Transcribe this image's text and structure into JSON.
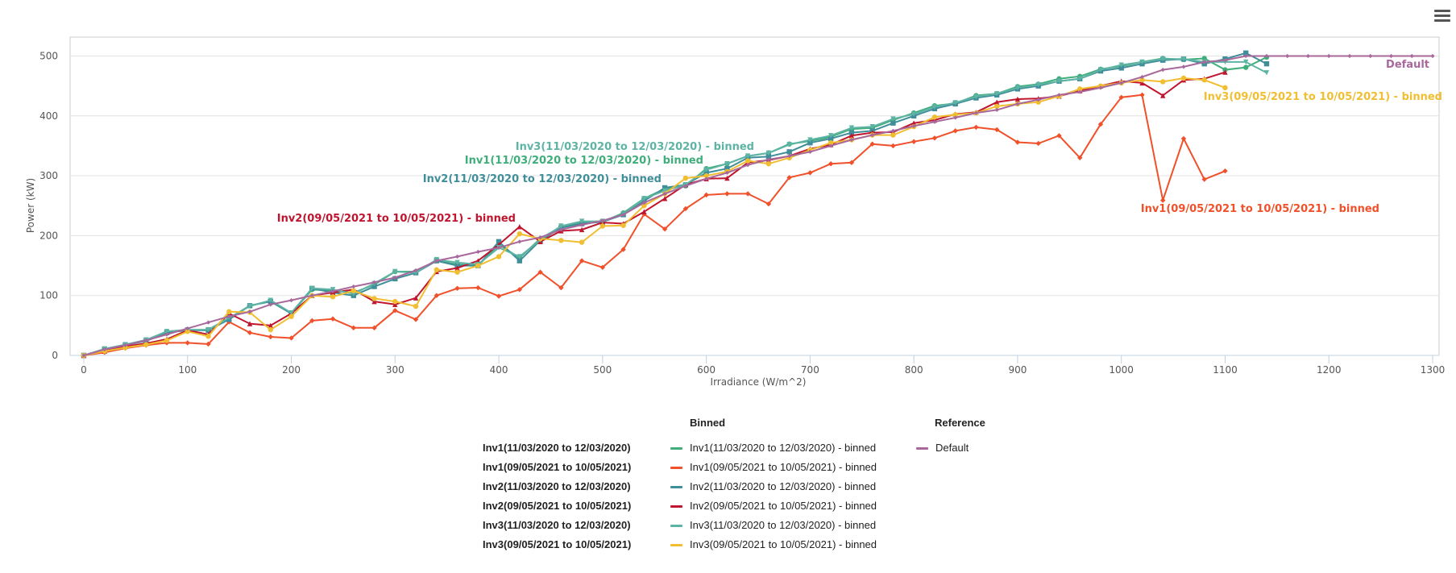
{
  "menu": {
    "icon": "hamburger-menu-icon"
  },
  "chart_data": {
    "type": "line",
    "title": "",
    "xlabel": "Irradiance (W/m^2)",
    "ylabel": "Power (kW)",
    "xlim": [
      0,
      1300
    ],
    "ylim": [
      0,
      520
    ],
    "xticks": [
      "0",
      "100",
      "200",
      "300",
      "400",
      "500",
      "600",
      "700",
      "800",
      "900",
      "1000",
      "1100",
      "1200",
      "1300"
    ],
    "yticks": [
      "0",
      "100",
      "200",
      "300",
      "400",
      "500"
    ],
    "grid": true,
    "x_start": 0,
    "x_step": 20,
    "series": [
      {
        "name": "Inv1(11/03/2020 to 12/03/2020) - binned",
        "group": "Binned",
        "color": "#3fae7a",
        "marker": "circle",
        "values": [
          0,
          10,
          17,
          25,
          40,
          42,
          42,
          62,
          83,
          91,
          70,
          110,
          108,
          105,
          118,
          140,
          140,
          158,
          152,
          150,
          185,
          163,
          195,
          215,
          222,
          223,
          238,
          262,
          278,
          283,
          312,
          320,
          333,
          338,
          353,
          358,
          365,
          378,
          380,
          393,
          405,
          417,
          421,
          434,
          437,
          449,
          453,
          462,
          466,
          478,
          483,
          490,
          496,
          494,
          496,
          477,
          481,
          498
        ]
      },
      {
        "name": "Inv1(09/05/2021 to 10/05/2021) - binned",
        "group": "Binned",
        "color": "#f0502a",
        "marker": "diamond",
        "values": [
          0,
          5,
          12,
          17,
          21,
          21,
          19,
          56,
          38,
          31,
          29,
          58,
          61,
          46,
          46,
          75,
          60,
          100,
          112,
          113,
          99,
          110,
          139,
          113,
          158,
          147,
          177,
          236,
          211,
          245,
          268,
          270,
          270,
          253,
          297,
          305,
          320,
          322,
          353,
          350,
          357,
          363,
          375,
          381,
          377,
          356,
          354,
          367,
          330,
          386,
          431,
          435,
          259,
          362,
          294,
          308
        ]
      },
      {
        "name": "Inv2(11/03/2020 to 12/03/2020) - binned",
        "group": "Binned",
        "color": "#3f8e9a",
        "marker": "square",
        "values": [
          0,
          10,
          17,
          24,
          38,
          42,
          42,
          60,
          83,
          90,
          70,
          112,
          105,
          100,
          115,
          128,
          138,
          158,
          150,
          150,
          190,
          158,
          192,
          213,
          220,
          223,
          235,
          258,
          280,
          285,
          305,
          312,
          330,
          332,
          340,
          355,
          362,
          372,
          375,
          388,
          400,
          412,
          420,
          430,
          435,
          445,
          450,
          458,
          462,
          475,
          480,
          487,
          493,
          495,
          487,
          495,
          505,
          487
        ]
      },
      {
        "name": "Inv2(09/05/2021 to 10/05/2021) - binned",
        "group": "Binned",
        "color": "#c0152f",
        "marker": "triangle",
        "values": [
          0,
          7,
          15,
          20,
          27,
          42,
          35,
          70,
          53,
          50,
          70,
          100,
          105,
          110,
          90,
          85,
          96,
          140,
          146,
          158,
          185,
          215,
          190,
          208,
          210,
          222,
          220,
          240,
          262,
          285,
          295,
          296,
          322,
          326,
          333,
          345,
          352,
          367,
          372,
          373,
          388,
          393,
          403,
          406,
          423,
          428,
          429,
          433,
          442,
          450,
          458,
          455,
          434,
          460,
          462,
          473
        ]
      },
      {
        "name": "Inv3(11/03/2020 to 12/03/2020) - binned",
        "group": "Binned",
        "color": "#5eb4a4",
        "marker": "triangle-down",
        "values": [
          0,
          11,
          18,
          26,
          40,
          43,
          43,
          63,
          82,
          92,
          71,
          112,
          110,
          103,
          120,
          140,
          138,
          160,
          155,
          152,
          180,
          165,
          193,
          216,
          224,
          224,
          236,
          262,
          275,
          285,
          310,
          320,
          333,
          338,
          352,
          360,
          367,
          380,
          382,
          395,
          403,
          415,
          422,
          432,
          437,
          447,
          452,
          458,
          462,
          477,
          485,
          490,
          495,
          495,
          490,
          490,
          490,
          472
        ]
      },
      {
        "name": "Inv3(09/05/2021 to 10/05/2021) - binned",
        "group": "Binned",
        "color": "#f0be30",
        "marker": "circle",
        "values": [
          0,
          7,
          13,
          18,
          25,
          40,
          32,
          73,
          72,
          43,
          65,
          100,
          98,
          108,
          95,
          90,
          82,
          143,
          139,
          150,
          165,
          203,
          195,
          192,
          189,
          216,
          217,
          250,
          270,
          296,
          300,
          307,
          325,
          320,
          330,
          343,
          355,
          360,
          368,
          368,
          382,
          398,
          402,
          405,
          416,
          420,
          423,
          433,
          445,
          450,
          455,
          460,
          457,
          463,
          460,
          447
        ]
      },
      {
        "name": "Default",
        "group": "Reference",
        "color": "#a8689c",
        "marker": "diamond",
        "values": [
          0,
          10,
          17,
          25,
          35,
          45,
          55,
          65,
          73,
          85,
          92,
          100,
          107,
          115,
          122,
          130,
          142,
          158,
          165,
          173,
          180,
          190,
          197,
          210,
          218,
          225,
          235,
          255,
          270,
          283,
          295,
          305,
          318,
          327,
          333,
          340,
          350,
          360,
          368,
          375,
          383,
          390,
          397,
          405,
          410,
          420,
          427,
          435,
          440,
          447,
          455,
          465,
          477,
          482,
          490,
          493,
          500,
          500,
          500,
          500,
          500,
          500,
          500,
          500,
          500,
          500
        ]
      }
    ],
    "annotations": [
      "Inv3(11/03/2020 to 12/03/2020) - binned",
      "Inv1(11/03/2020 to 12/03/2020) - binned",
      "Inv2(11/03/2020 to 12/03/2020) - binned",
      "Inv2(09/05/2021 to 10/05/2021) - binned",
      "Inv1(09/05/2021 to 10/05/2021) - binned",
      "Inv3(09/05/2021 to 10/05/2021) - binned",
      "Default"
    ],
    "legend": {
      "placement": "bottom",
      "inverters": [
        "Inv1(11/03/2020 to 12/03/2020)",
        "Inv1(09/05/2021 to 10/05/2021)",
        "Inv2(11/03/2020 to 12/03/2020)",
        "Inv2(09/05/2021 to 10/05/2021)",
        "Inv3(11/03/2020 to 12/03/2020)",
        "Inv3(09/05/2021 to 10/05/2021)"
      ],
      "binned_title": "Binned",
      "reference_title": "Reference"
    }
  }
}
